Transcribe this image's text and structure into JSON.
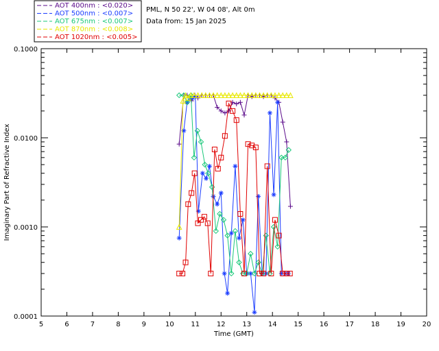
{
  "header": {
    "site": "PML, N 50 22', W 04 08', Alt 0m",
    "date": "Data from: 15 Jan 2025"
  },
  "chart_data": {
    "type": "line",
    "xlabel": "Time (GMT)",
    "ylabel": "Imaginary Part of Refractive Index",
    "xlim": [
      5,
      20
    ],
    "ylim": [
      0.0001,
      0.1
    ],
    "yscale": "log",
    "x_ticks": [
      "5",
      "6",
      "7",
      "8",
      "9",
      "10",
      "11",
      "12",
      "13",
      "14",
      "15",
      "16",
      "17",
      "18",
      "19",
      "20"
    ],
    "y_ticks": [
      {
        "value": 0.0001,
        "label": "0.0001"
      },
      {
        "value": 0.001,
        "label": "0.0010"
      },
      {
        "value": 0.01,
        "label": "0.0100"
      },
      {
        "value": 0.1,
        "label": "0.1000"
      }
    ],
    "legend_position": "top-left",
    "series": [
      {
        "name": "AOT  400nm : <0.020>",
        "color": "#5a0a8a",
        "marker": "plus",
        "x": [
          10.37,
          10.55,
          10.68,
          10.85,
          10.98,
          11.1,
          11.25,
          11.4,
          11.55,
          11.7,
          11.85,
          12.0,
          12.15,
          12.3,
          12.45,
          12.6,
          12.75,
          12.9,
          13.05,
          13.2,
          13.35,
          13.5,
          13.65,
          13.8,
          13.95,
          14.1,
          14.25,
          14.4,
          14.55,
          14.7
        ],
        "y": [
          0.0085,
          0.03,
          0.03,
          0.026,
          0.03,
          0.028,
          0.03,
          0.03,
          0.03,
          0.03,
          0.022,
          0.02,
          0.019,
          0.02,
          0.025,
          0.024,
          0.025,
          0.018,
          0.03,
          0.029,
          0.03,
          0.03,
          0.029,
          0.03,
          0.03,
          0.028,
          0.025,
          0.015,
          0.009,
          0.0017
        ]
      },
      {
        "name": "AOT  500nm : <0.007>",
        "color": "#1a3cff",
        "marker": "star",
        "x": [
          10.37,
          10.55,
          10.68,
          10.78,
          10.9,
          11.0,
          11.12,
          11.28,
          11.42,
          11.55,
          11.7,
          11.85,
          12.0,
          12.13,
          12.25,
          12.4,
          12.55,
          12.7,
          12.85,
          13.0,
          13.15,
          13.3,
          13.45,
          13.6,
          13.75,
          13.9,
          14.05,
          14.2,
          14.35,
          14.5,
          14.62
        ],
        "y": [
          0.00075,
          0.012,
          0.025,
          0.028,
          0.028,
          0.029,
          0.0015,
          0.004,
          0.0035,
          0.0048,
          0.0022,
          0.0018,
          0.0024,
          0.0003,
          0.00018,
          0.00085,
          0.0048,
          0.00075,
          0.0012,
          0.0003,
          0.0003,
          0.00011,
          0.0022,
          0.0003,
          0.0003,
          0.019,
          0.0023,
          0.025,
          0.0003,
          0.0003,
          0.0003
        ]
      },
      {
        "name": "AOT  675nm : <0.007>",
        "color": "#1ac87a",
        "marker": "diamond",
        "x": [
          10.37,
          10.55,
          10.68,
          10.83,
          10.95,
          11.08,
          11.22,
          11.37,
          11.5,
          11.65,
          11.8,
          11.95,
          12.1,
          12.25,
          12.4,
          12.55,
          12.7,
          12.85,
          13.0,
          13.15,
          13.3,
          13.45,
          13.6,
          13.75,
          13.9,
          14.05,
          14.2,
          14.35,
          14.5,
          14.63
        ],
        "y": [
          0.03,
          0.03,
          0.025,
          0.03,
          0.006,
          0.012,
          0.009,
          0.005,
          0.004,
          0.0028,
          0.0009,
          0.0014,
          0.0012,
          0.0008,
          0.0003,
          0.0009,
          0.0004,
          0.0003,
          0.0003,
          0.0005,
          0.0003,
          0.0004,
          0.0003,
          0.0008,
          0.0003,
          0.001,
          0.0006,
          0.006,
          0.006,
          0.0073
        ]
      },
      {
        "name": "AOT  870nm : <0.008>",
        "color": "#e8e800",
        "marker": "triangle",
        "x": [
          10.37,
          10.52,
          10.62,
          10.72,
          10.82,
          10.95,
          11.1,
          11.25,
          11.4,
          11.55,
          11.7,
          11.85,
          12.0,
          12.15,
          12.3,
          12.45,
          12.6,
          12.75,
          12.9,
          13.05,
          13.2,
          13.35,
          13.5,
          13.65,
          13.8,
          13.95,
          14.1,
          14.25,
          14.4,
          14.55,
          14.7
        ],
        "y": [
          0.001,
          0.026,
          0.03,
          0.028,
          0.03,
          0.03,
          0.03,
          0.03,
          0.03,
          0.03,
          0.03,
          0.03,
          0.03,
          0.03,
          0.03,
          0.03,
          0.03,
          0.03,
          0.03,
          0.03,
          0.03,
          0.03,
          0.03,
          0.03,
          0.03,
          0.03,
          0.03,
          0.03,
          0.03,
          0.03,
          0.03
        ]
      },
      {
        "name": "AOT 1020nm : <0.005>",
        "color": "#e00000",
        "marker": "square",
        "x": [
          10.37,
          10.5,
          10.62,
          10.72,
          10.85,
          10.97,
          11.1,
          11.22,
          11.35,
          11.48,
          11.6,
          11.75,
          11.88,
          12.0,
          12.15,
          12.3,
          12.45,
          12.6,
          12.75,
          12.9,
          13.05,
          13.2,
          13.35,
          13.5,
          13.65,
          13.8,
          13.95,
          14.1,
          14.25,
          14.4,
          14.55,
          14.68
        ],
        "y": [
          0.0003,
          0.0003,
          0.0004,
          0.0018,
          0.0024,
          0.004,
          0.0011,
          0.0012,
          0.0013,
          0.0011,
          0.0003,
          0.0074,
          0.0045,
          0.006,
          0.0105,
          0.0243,
          0.02,
          0.0158,
          0.0014,
          0.0003,
          0.0085,
          0.0082,
          0.0078,
          0.0003,
          0.0003,
          0.0048,
          0.0003,
          0.0012,
          0.0008,
          0.0003,
          0.0003,
          0.0003
        ]
      }
    ]
  }
}
